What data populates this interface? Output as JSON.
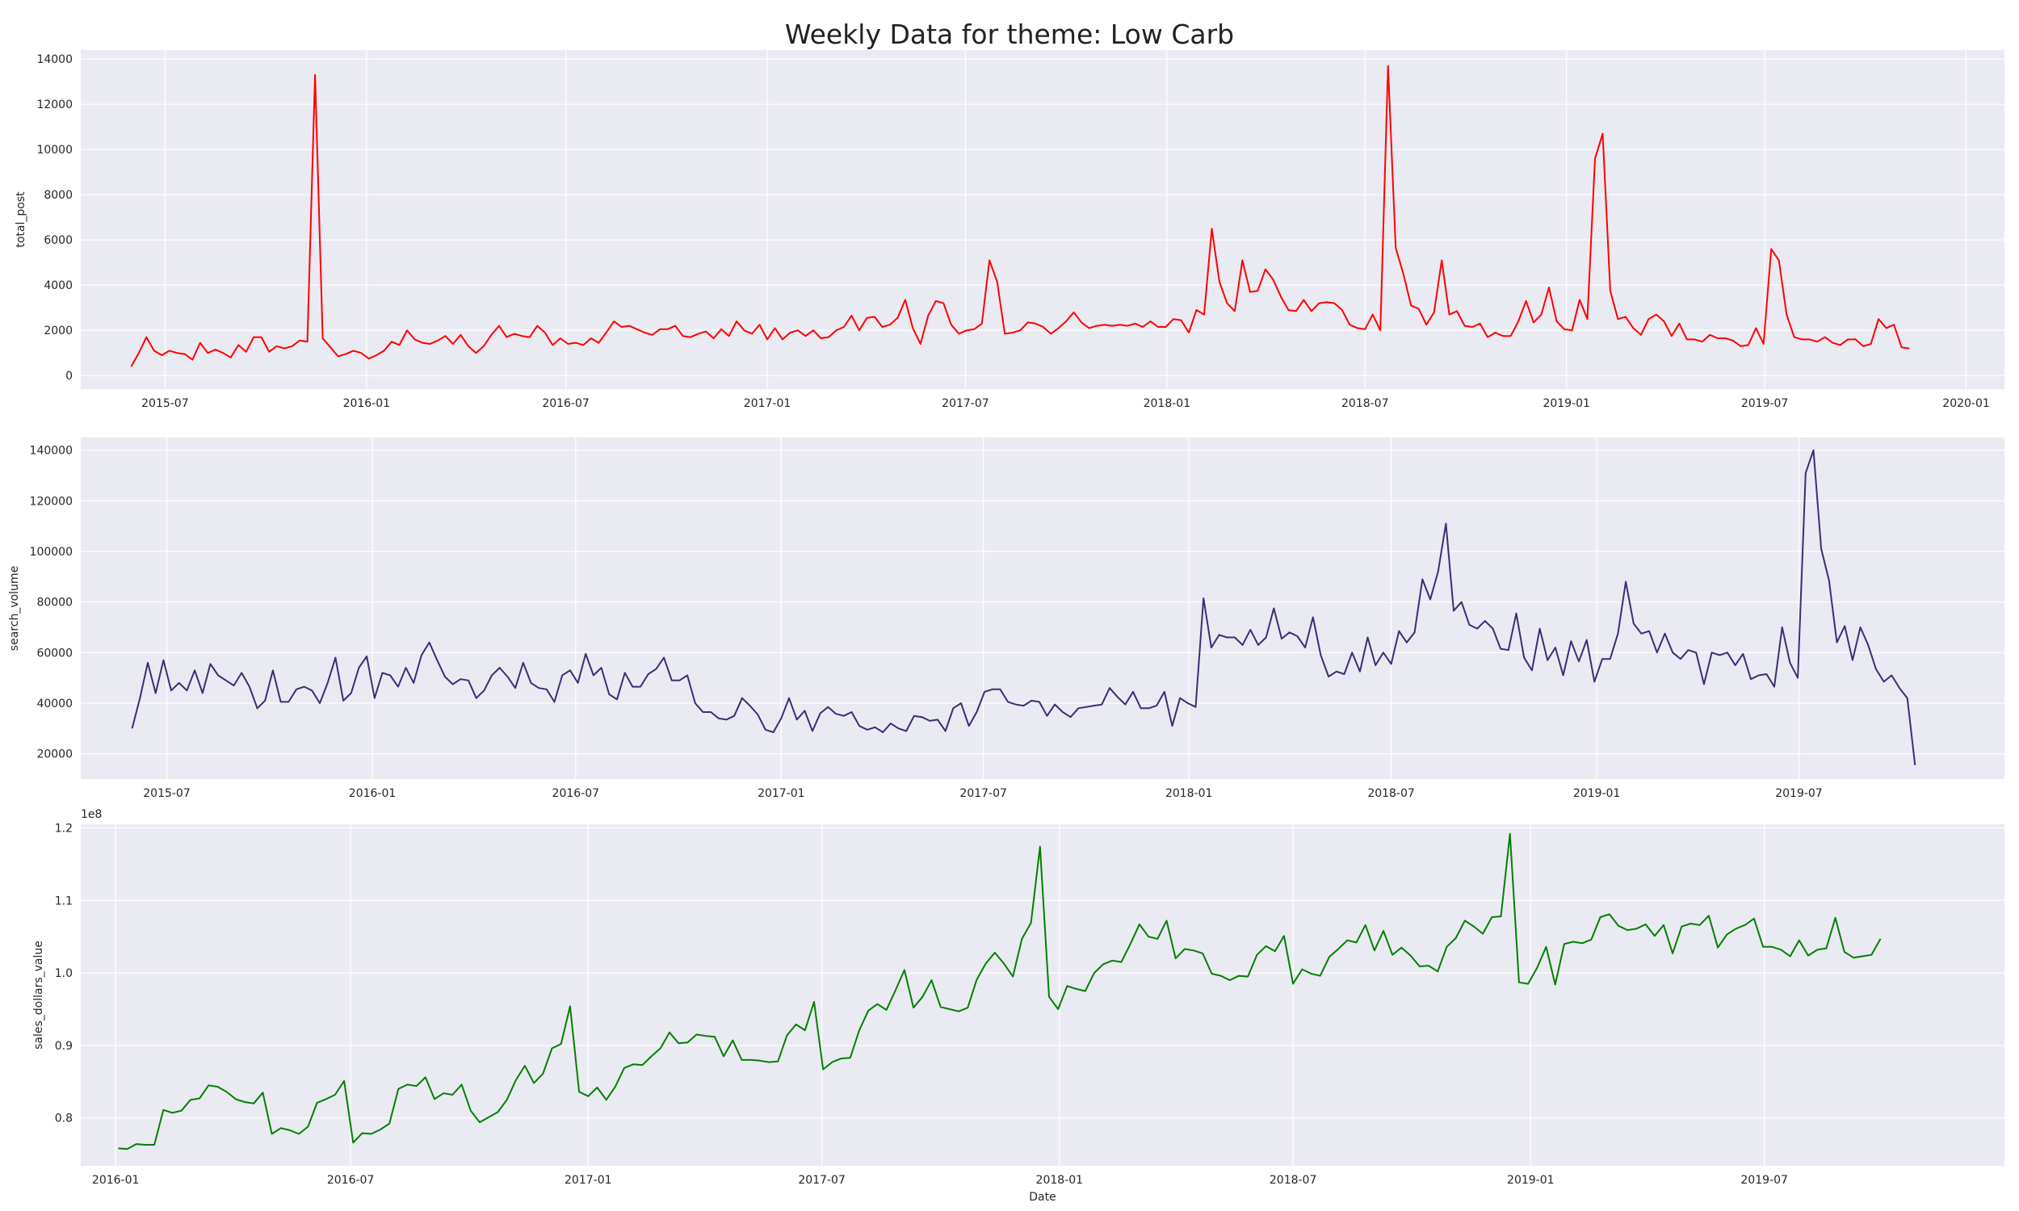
{
  "figure": {
    "title": "Weekly Data for theme: Low Carb",
    "background": "#ffffff",
    "panel_background": "#eaeaf2",
    "grid_color": "#ffffff"
  },
  "chart_data": [
    {
      "type": "line",
      "ylabel": "total_post",
      "xlabel": "",
      "color": "#ff0000",
      "xlim": [
        "2015-04-15",
        "2020-02-05"
      ],
      "ylim": [
        -600,
        14400
      ],
      "grid": true,
      "y_ticks": [
        0,
        2000,
        4000,
        6000,
        8000,
        10000,
        12000,
        14000
      ],
      "y_tick_labels": [
        "0",
        "2000",
        "4000",
        "6000",
        "8000",
        "10000",
        "12000",
        "14000"
      ],
      "x_ticks": [
        "2015-07-01",
        "2016-01-01",
        "2016-07-01",
        "2017-01-01",
        "2017-07-01",
        "2018-01-01",
        "2018-07-01",
        "2019-01-01",
        "2019-07-01",
        "2020-01-01"
      ],
      "x_tick_labels": [
        "2015-07",
        "2016-01",
        "2016-07",
        "2017-01",
        "2017-07",
        "2018-01",
        "2018-07",
        "2019-01",
        "2019-07",
        "2020-01"
      ],
      "series": [
        {
          "start": "2015-05-31",
          "step_days": 7,
          "values": [
            400,
            1000,
            1700,
            1100,
            900,
            1100,
            1000,
            950,
            700,
            1450,
            1000,
            1150,
            1000,
            800,
            1350,
            1050,
            1700,
            1700,
            1050,
            1300,
            1200,
            1300,
            1550,
            1500,
            13300,
            1650,
            1250,
            850,
            950,
            1100,
            1000,
            750,
            900,
            1100,
            1500,
            1350,
            2000,
            1600,
            1450,
            1400,
            1550,
            1750,
            1400,
            1800,
            1300,
            1000,
            1300,
            1800,
            2200,
            1700,
            1850,
            1750,
            1700,
            2200,
            1900,
            1350,
            1650,
            1400,
            1450,
            1350,
            1650,
            1450,
            1900,
            2400,
            2150,
            2200,
            2050,
            1900,
            1800,
            2050,
            2050,
            2200,
            1750,
            1700,
            1850,
            1950,
            1650,
            2050,
            1750,
            2400,
            2000,
            1850,
            2250,
            1600,
            2100,
            1600,
            1900,
            2000,
            1750,
            2000,
            1650,
            1700,
            2000,
            2150,
            2650,
            2000,
            2550,
            2600,
            2150,
            2250,
            2550,
            3350,
            2100,
            1400,
            2650,
            3300,
            3200,
            2250,
            1850,
            2000,
            2050,
            2300,
            5100,
            4150,
            1850,
            1900,
            2000,
            2350,
            2300,
            2150,
            1850,
            2100,
            2400,
            2800,
            2350,
            2100,
            2200,
            2250,
            2200,
            2250,
            2200,
            2300,
            2150,
            2400,
            2150,
            2150,
            2500,
            2450,
            1900,
            2900,
            2700,
            6500,
            4150,
            3200,
            2850,
            5100,
            3700,
            3750,
            4700,
            4250,
            3500,
            2900,
            2850,
            3350,
            2850,
            3200,
            3250,
            3200,
            2900,
            2250,
            2100,
            2050,
            2700,
            2000,
            13700,
            5650,
            4500,
            3100,
            2950,
            2250,
            2800,
            5100,
            2700,
            2850,
            2200,
            2150,
            2300,
            1700,
            1900,
            1750,
            1750,
            2400,
            3300,
            2350,
            2700,
            3900,
            2400,
            2050,
            2000,
            3350,
            2500,
            9600,
            10700,
            3750,
            2500,
            2600,
            2100,
            1800,
            2500,
            2700,
            2400,
            1750,
            2300,
            1600,
            1600,
            1500,
            1800,
            1650,
            1650,
            1550,
            1300,
            1350,
            2100,
            1400,
            5600,
            5100,
            2700,
            1700,
            1600,
            1600,
            1500,
            1700,
            1450,
            1350,
            1600,
            1600,
            1300,
            1400,
            2500,
            2100,
            2250,
            1250,
            1200
          ]
        }
      ]
    },
    {
      "type": "line",
      "ylabel": "search_volume",
      "xlabel": "",
      "color": "#3b2d78",
      "xlim": [
        "2015-04-15",
        "2020-01-01"
      ],
      "ylim": [
        10000,
        145000
      ],
      "grid": true,
      "y_ticks": [
        20000,
        40000,
        60000,
        80000,
        100000,
        120000,
        140000
      ],
      "y_tick_labels": [
        "20000",
        "40000",
        "60000",
        "80000",
        "100000",
        "120000",
        "140000"
      ],
      "x_ticks": [
        "2015-07-01",
        "2016-01-01",
        "2016-07-01",
        "2017-01-01",
        "2017-07-01",
        "2018-01-01",
        "2018-07-01",
        "2019-01-01",
        "2019-07-01"
      ],
      "x_tick_labels": [
        "2015-07",
        "2016-01",
        "2016-07",
        "2017-01",
        "2017-07",
        "2018-01",
        "2018-07",
        "2019-01",
        "2019-07"
      ],
      "series": [
        {
          "start": "2015-05-31",
          "step_days": 7,
          "values": [
            30000,
            42000,
            56000,
            44000,
            57000,
            45000,
            48000,
            45000,
            53000,
            44000,
            55500,
            51000,
            49000,
            47000,
            52000,
            46500,
            38000,
            41000,
            53000,
            40500,
            40500,
            45500,
            46500,
            45000,
            40000,
            48000,
            58000,
            41000,
            44000,
            54000,
            58500,
            42000,
            52000,
            51000,
            46500,
            54000,
            48000,
            59000,
            64000,
            57000,
            50500,
            47500,
            49500,
            49000,
            42000,
            45000,
            51000,
            54000,
            50500,
            46000,
            56000,
            48000,
            46000,
            45500,
            40500,
            51000,
            53000,
            48000,
            59500,
            51000,
            54000,
            43500,
            41500,
            52000,
            46500,
            46500,
            51500,
            53500,
            58000,
            49000,
            49000,
            51000,
            40000,
            36500,
            36500,
            34000,
            33500,
            35000,
            42000,
            39000,
            35500,
            29500,
            28500,
            34000,
            42000,
            33500,
            37000,
            29000,
            36000,
            38500,
            35800,
            35000,
            36500,
            31000,
            29500,
            30500,
            28500,
            32000,
            30000,
            29000,
            35000,
            34500,
            33000,
            33500,
            29000,
            38000,
            40000,
            31000,
            36500,
            44500,
            45500,
            45500,
            40500,
            39500,
            39000,
            41000,
            40500,
            35000,
            39500,
            36500,
            34500,
            38000,
            38500,
            39000,
            39500,
            46000,
            42500,
            39500,
            44500,
            38000,
            38000,
            39000,
            44500,
            31000,
            42000,
            40000,
            38500,
            81500,
            62000,
            67000,
            66000,
            66000,
            63000,
            69000,
            63000,
            66000,
            77500,
            65500,
            68000,
            66500,
            62000,
            74000,
            59000,
            50500,
            52500,
            51500,
            60000,
            52500,
            66000,
            55000,
            60000,
            55500,
            68500,
            64000,
            68000,
            89000,
            81000,
            92000,
            111000,
            76500,
            80000,
            71000,
            69500,
            72500,
            69500,
            61500,
            61000,
            75500,
            58000,
            53000,
            69500,
            57000,
            62000,
            51000,
            64500,
            56500,
            65000,
            48500,
            57500,
            57500,
            67500,
            88000,
            71500,
            67500,
            68500,
            60000,
            67500,
            60000,
            57500,
            61000,
            60000,
            47500,
            60000,
            59000,
            60000,
            55000,
            59500,
            49500,
            51000,
            51500,
            46500,
            70000,
            56000,
            50000,
            131000,
            140000,
            101000,
            88500,
            64000,
            70500,
            57000,
            70000,
            63000,
            53500,
            48500,
            51000,
            46000,
            42000,
            15500
          ]
        }
      ]
    },
    {
      "type": "line",
      "ylabel": "sales_dollars_value",
      "xlabel": "Date",
      "offset_label": "1e8",
      "color": "#008000",
      "xlim": [
        "2015-12-05",
        "2020-01-03"
      ],
      "ylim": [
        0.734,
        1.205
      ],
      "grid": true,
      "y_ticks": [
        0.8,
        0.9,
        1.0,
        1.1,
        1.2
      ],
      "y_tick_labels": [
        "0.8",
        "0.9",
        "1.0",
        "1.1",
        "1.2"
      ],
      "x_ticks": [
        "2016-01-01",
        "2016-07-01",
        "2017-01-01",
        "2017-07-01",
        "2018-01-01",
        "2018-07-01",
        "2019-01-01",
        "2019-07-01"
      ],
      "x_tick_labels": [
        "2016-01",
        "2016-07",
        "2017-01",
        "2017-07",
        "2018-01",
        "2018-07",
        "2019-01",
        "2019-07"
      ],
      "series": [
        {
          "start": "2016-01-03",
          "step_days": 7,
          "values": [
            0.758,
            0.757,
            0.764,
            0.763,
            0.763,
            0.811,
            0.807,
            0.81,
            0.825,
            0.827,
            0.845,
            0.843,
            0.836,
            0.826,
            0.822,
            0.82,
            0.835,
            0.778,
            0.786,
            0.783,
            0.778,
            0.788,
            0.821,
            0.826,
            0.832,
            0.851,
            0.766,
            0.779,
            0.778,
            0.784,
            0.792,
            0.84,
            0.846,
            0.844,
            0.856,
            0.826,
            0.834,
            0.832,
            0.846,
            0.81,
            0.794,
            0.801,
            0.808,
            0.825,
            0.852,
            0.872,
            0.848,
            0.861,
            0.896,
            0.902,
            0.954,
            0.836,
            0.83,
            0.842,
            0.825,
            0.843,
            0.869,
            0.874,
            0.873,
            0.885,
            0.896,
            0.918,
            0.903,
            0.904,
            0.915,
            0.913,
            0.912,
            0.885,
            0.907,
            0.88,
            0.88,
            0.879,
            0.877,
            0.878,
            0.914,
            0.929,
            0.921,
            0.96,
            0.867,
            0.877,
            0.882,
            0.883,
            0.921,
            0.948,
            0.957,
            0.949,
            0.976,
            1.004,
            0.952,
            0.967,
            0.99,
            0.953,
            0.95,
            0.947,
            0.952,
            0.991,
            1.013,
            1.028,
            1.013,
            0.995,
            1.047,
            1.069,
            1.174,
            0.967,
            0.95,
            0.982,
            0.978,
            0.975,
            1.0,
            1.012,
            1.017,
            1.015,
            1.04,
            1.067,
            1.05,
            1.047,
            1.072,
            1.02,
            1.033,
            1.031,
            1.027,
            0.999,
            0.996,
            0.99,
            0.996,
            0.995,
            1.025,
            1.037,
            1.03,
            1.051,
            0.985,
            1.005,
            0.999,
            0.996,
            1.022,
            1.033,
            1.045,
            1.042,
            1.066,
            1.031,
            1.058,
            1.025,
            1.035,
            1.024,
            1.009,
            1.01,
            1.002,
            1.036,
            1.048,
            1.072,
            1.064,
            1.054,
            1.077,
            1.078,
            1.192,
            0.987,
            0.985,
            1.007,
            1.036,
            0.984,
            1.04,
            1.043,
            1.041,
            1.046,
            1.077,
            1.081,
            1.065,
            1.059,
            1.061,
            1.067,
            1.051,
            1.066,
            1.027,
            1.064,
            1.068,
            1.066,
            1.079,
            1.035,
            1.053,
            1.061,
            1.066,
            1.075,
            1.036,
            1.036,
            1.032,
            1.023,
            1.045,
            1.024,
            1.032,
            1.034,
            1.076,
            1.029,
            1.021,
            1.023,
            1.025,
            1.047
          ]
        }
      ]
    }
  ]
}
